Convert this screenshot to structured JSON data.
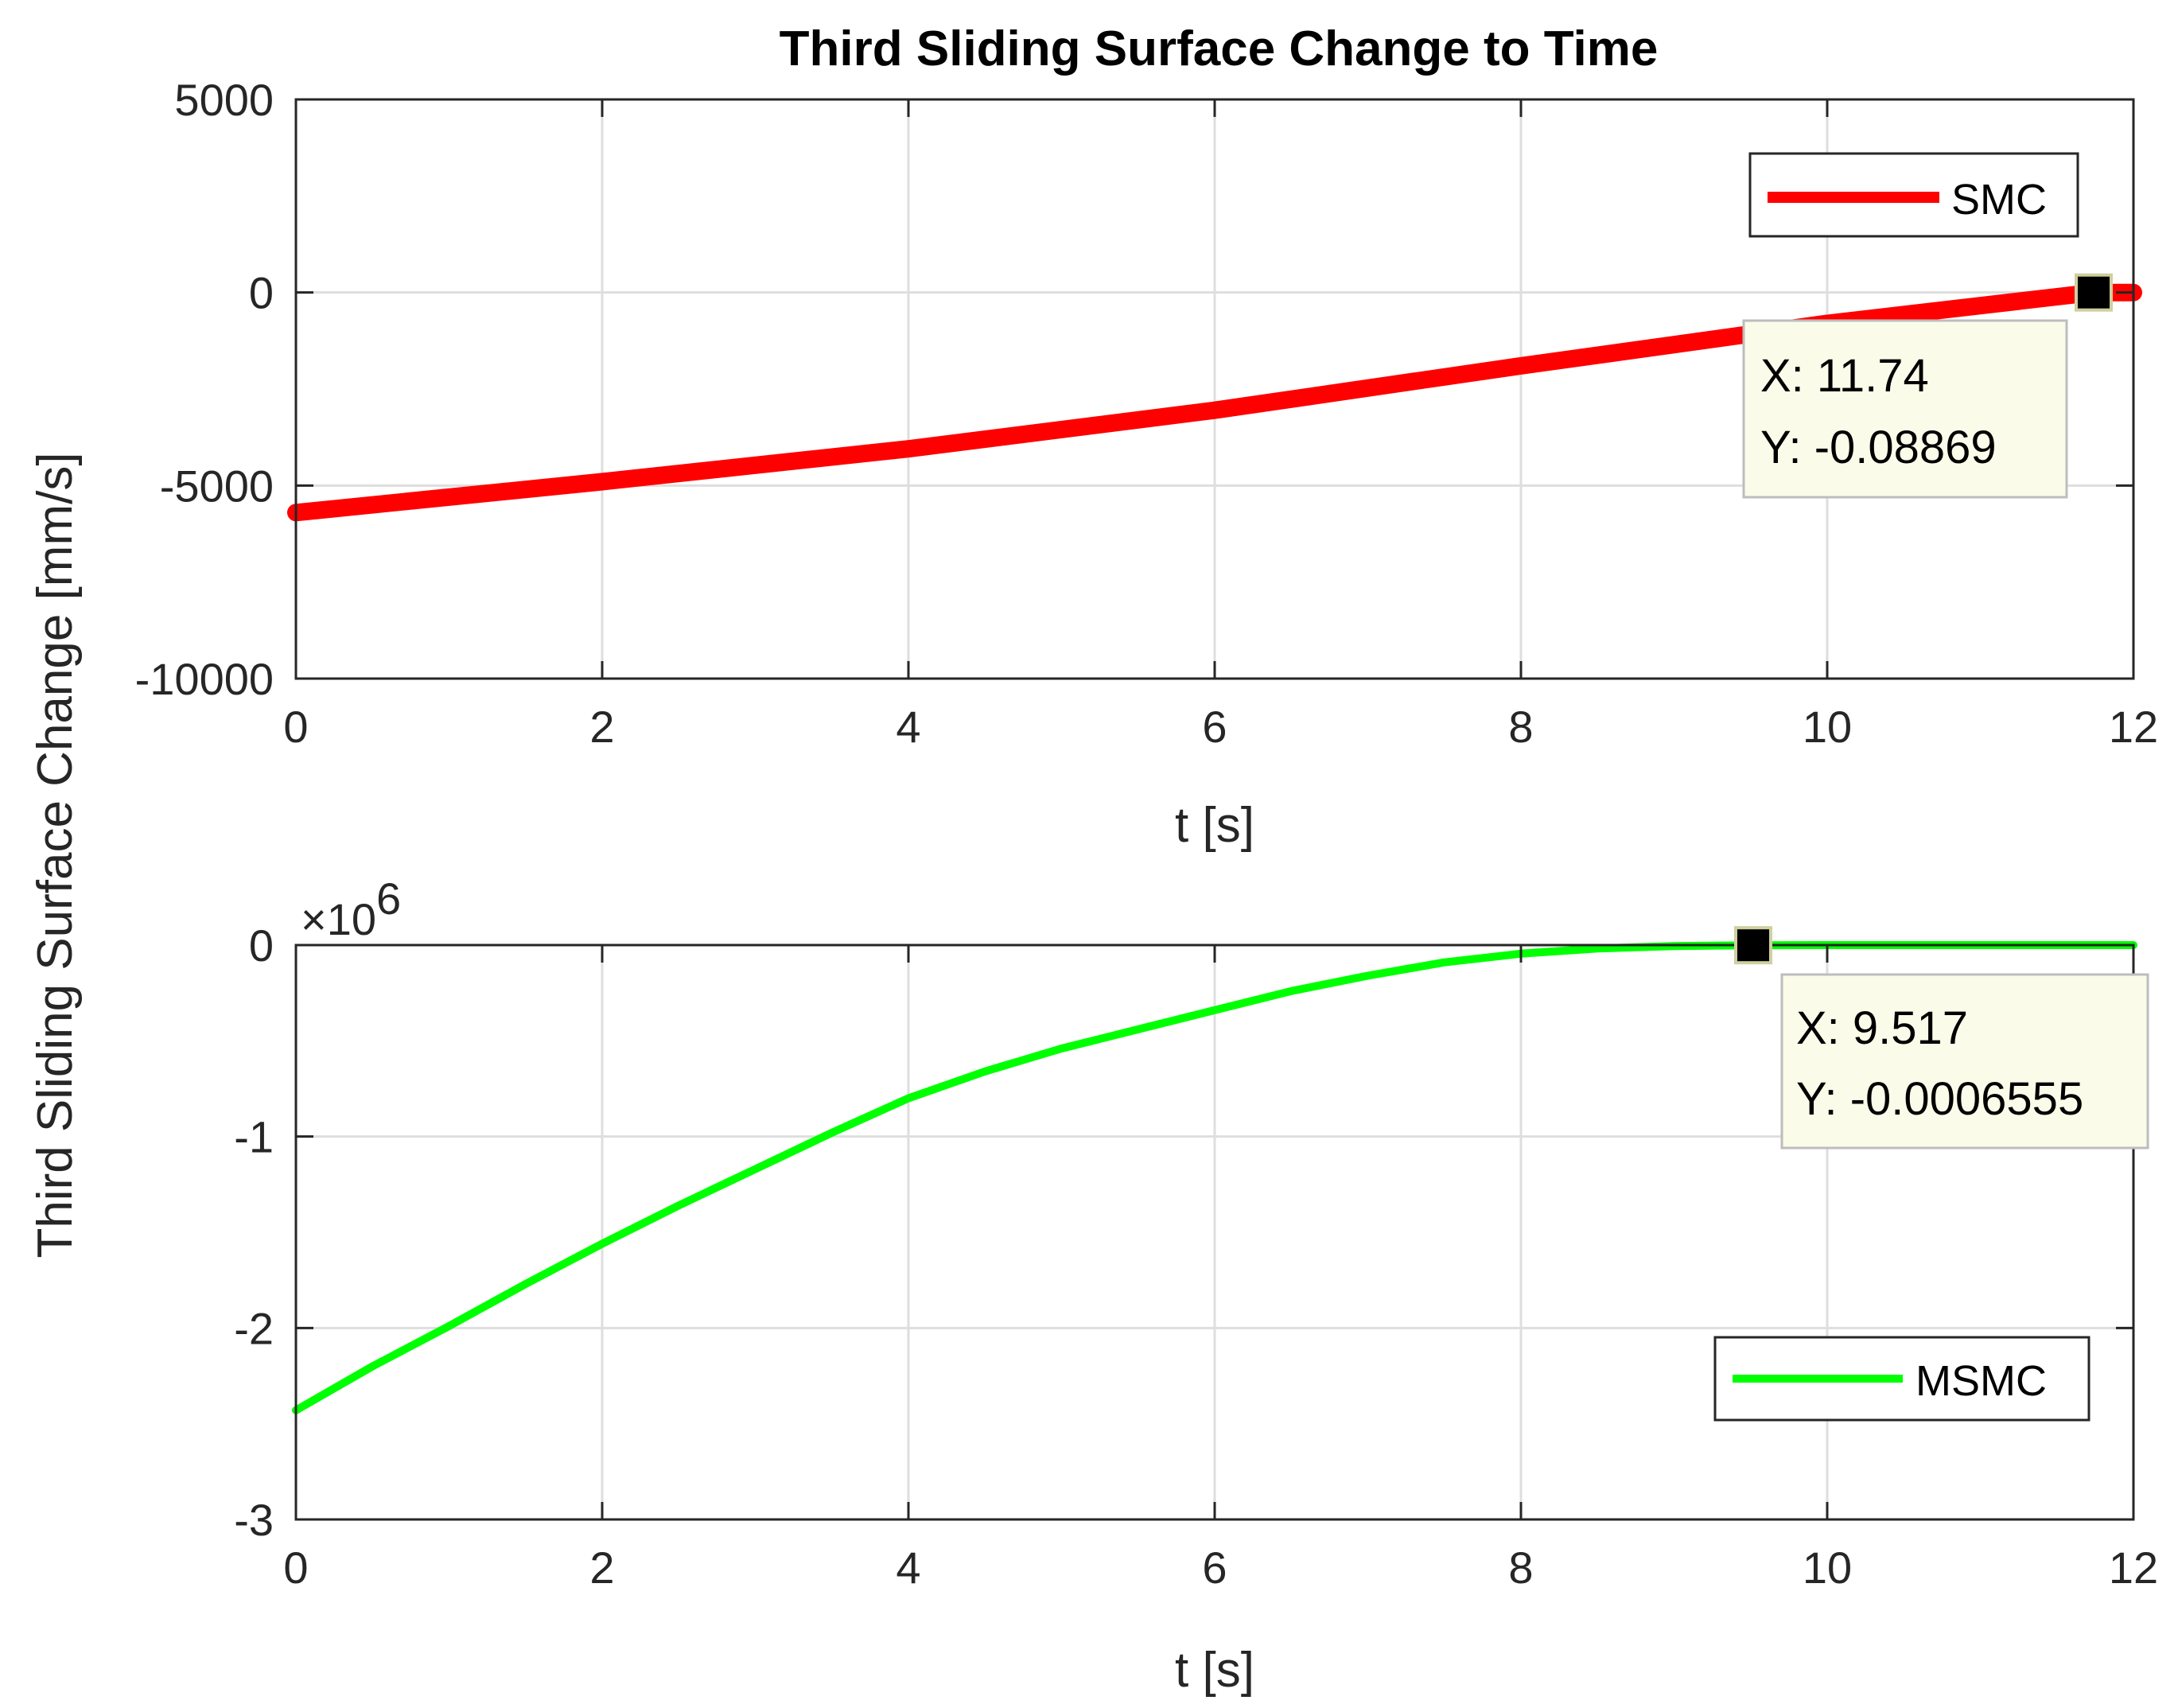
{
  "figure": {
    "title": "Third Sliding Surface Change to Time",
    "shared_ylabel": "Third Sliding Surface Change [mm/s]"
  },
  "chart_data": [
    {
      "type": "line",
      "title": "Third Sliding Surface Change to Time",
      "xlabel": "t [s]",
      "ylabel": "Third Sliding Surface Change [mm/s]",
      "xlim": [
        0,
        12
      ],
      "ylim": [
        -10000,
        5000
      ],
      "xticks": [
        0,
        2,
        4,
        6,
        8,
        10,
        12
      ],
      "yticks": [
        -10000,
        -5000,
        0,
        5000
      ],
      "xtick_labels": [
        "0",
        "2",
        "4",
        "6",
        "8",
        "10",
        "12"
      ],
      "ytick_labels": [
        "-10000",
        "-5000",
        "0",
        "5000"
      ],
      "grid": true,
      "legend_position": "top-right",
      "series": [
        {
          "name": "SMC",
          "color": "#ff0000",
          "x": [
            0,
            2,
            4,
            6,
            8,
            10,
            11.74,
            12
          ],
          "y": [
            -5700,
            -4900,
            -4050,
            -3050,
            -1900,
            -800,
            -0.08869,
            0
          ]
        }
      ],
      "datatip": {
        "x": 11.74,
        "y": -0.08869,
        "label_x": "X: 11.74",
        "label_y": "Y: -0.08869"
      }
    },
    {
      "type": "line",
      "xlabel": "t [s]",
      "ylabel": "Third Sliding Surface Change [mm/s]",
      "xlim": [
        0,
        12
      ],
      "ylim": [
        -3,
        0
      ],
      "y_scale_exponent_label": "×10",
      "y_scale_exponent_power": "6",
      "xticks": [
        0,
        2,
        4,
        6,
        8,
        10,
        12
      ],
      "yticks": [
        -3,
        -2,
        -1,
        0
      ],
      "xtick_labels": [
        "0",
        "2",
        "4",
        "6",
        "8",
        "10",
        "12"
      ],
      "ytick_labels": [
        "-3",
        "-2",
        "-1",
        "0"
      ],
      "grid": true,
      "legend_position": "bottom-right",
      "series": [
        {
          "name": "MSMC",
          "color": "#00ff00",
          "x": [
            0,
            0.5,
            1,
            1.5,
            2,
            2.5,
            3,
            3.5,
            4,
            4.5,
            5,
            5.5,
            6,
            6.5,
            7,
            7.5,
            8,
            8.5,
            9,
            9.517,
            10,
            11,
            12
          ],
          "y": [
            -2.43,
            -2.2,
            -1.99,
            -1.77,
            -1.56,
            -1.36,
            -1.17,
            -0.98,
            -0.8,
            -0.66,
            -0.54,
            -0.44,
            -0.34,
            -0.24,
            -0.16,
            -0.09,
            -0.045,
            -0.018,
            -0.005,
            -0.0006555,
            0,
            0,
            0
          ]
        }
      ],
      "datatip": {
        "x": 9.517,
        "y": -0.0006555,
        "label_x": "X: 9.517",
        "label_y": "Y: -0.0006555"
      }
    }
  ]
}
